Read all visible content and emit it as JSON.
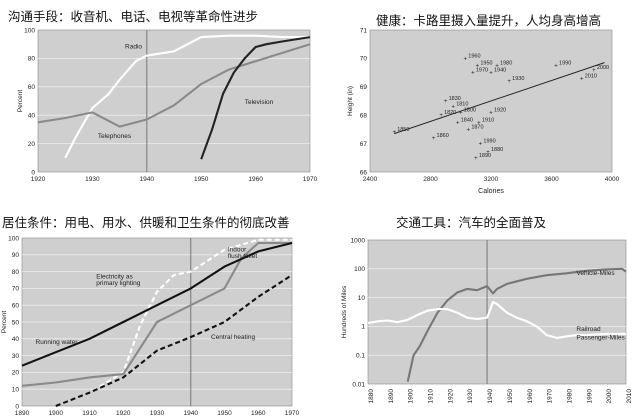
{
  "chart_data": [
    {
      "type": "line",
      "title": "沟通手段：收音机、电话、电视等革命性进步",
      "ylabel": "Percent",
      "xlim": [
        1920,
        1970
      ],
      "ylim": [
        0,
        100
      ],
      "xticks": [
        1920,
        1930,
        1940,
        1950,
        1960,
        1970
      ],
      "yticks": [
        0,
        20,
        40,
        60,
        80,
        100
      ],
      "grid": "horizontal",
      "series": [
        {
          "name": "Radio",
          "x": [
            1925,
            1927,
            1930,
            1933,
            1935,
            1938,
            1940,
            1945,
            1950,
            1955,
            1960,
            1965,
            1970
          ],
          "y": [
            10,
            25,
            45,
            55,
            65,
            78,
            82,
            85,
            95,
            96,
            96,
            95,
            95
          ],
          "color": "#ffffff"
        },
        {
          "name": "Telephones",
          "x": [
            1920,
            1925,
            1930,
            1935,
            1940,
            1945,
            1950,
            1955,
            1960,
            1965,
            1970
          ],
          "y": [
            35,
            38,
            42,
            32,
            37,
            47,
            62,
            72,
            78,
            84,
            90
          ],
          "color": "#8a8a8a"
        },
        {
          "name": "Television",
          "x": [
            1950,
            1952,
            1954,
            1956,
            1958,
            1960,
            1962,
            1965,
            1970
          ],
          "y": [
            9,
            30,
            55,
            70,
            80,
            88,
            90,
            92,
            95
          ],
          "color": "#222222"
        }
      ],
      "annotations": [
        {
          "text": "Radio",
          "x": 1936,
          "y": 87
        },
        {
          "text": "Television",
          "x": 1958,
          "y": 48
        },
        {
          "text": "Telephones",
          "x": 1931,
          "y": 24
        }
      ]
    },
    {
      "type": "scatter",
      "title": "健康：卡路里摄入量提升，人均身高增高",
      "xlabel": "Calories",
      "ylabel": "Height (in)",
      "xlim": [
        2400,
        4000
      ],
      "ylim": [
        66,
        71
      ],
      "xticks": [
        2400,
        2800,
        3200,
        3600,
        4000
      ],
      "yticks": [
        66,
        67,
        68,
        69,
        70,
        71
      ],
      "grid": "none",
      "points": [
        {
          "label": "1850",
          "x": 2560,
          "y": 67.4
        },
        {
          "label": "1830",
          "x": 2900,
          "y": 68.5
        },
        {
          "label": "1810",
          "x": 2950,
          "y": 68.3
        },
        {
          "label": "1800",
          "x": 3000,
          "y": 68.1
        },
        {
          "label": "1820",
          "x": 2870,
          "y": 68.0
        },
        {
          "label": "1840",
          "x": 2980,
          "y": 67.75
        },
        {
          "label": "1870",
          "x": 3050,
          "y": 67.5
        },
        {
          "label": "1910",
          "x": 3120,
          "y": 67.75
        },
        {
          "label": "1860",
          "x": 2820,
          "y": 67.2
        },
        {
          "label": "1960",
          "x": 3030,
          "y": 70.0
        },
        {
          "label": "1950",
          "x": 3110,
          "y": 69.75
        },
        {
          "label": "1970",
          "x": 3080,
          "y": 69.5
        },
        {
          "label": "1980",
          "x": 3240,
          "y": 69.75
        },
        {
          "label": "1940",
          "x": 3200,
          "y": 69.5
        },
        {
          "label": "1930",
          "x": 3320,
          "y": 69.2
        },
        {
          "label": "1920",
          "x": 3200,
          "y": 68.1
        },
        {
          "label": "1990",
          "x": 3630,
          "y": 69.75
        },
        {
          "label": "2000",
          "x": 3880,
          "y": 69.6
        },
        {
          "label": "2010",
          "x": 3800,
          "y": 69.3
        },
        {
          "label": "1990",
          "x": 3130,
          "y": 67.0
        },
        {
          "label": "1880",
          "x": 3180,
          "y": 66.7
        },
        {
          "label": "1890",
          "x": 3100,
          "y": 66.5
        }
      ],
      "trendline": {
        "x": [
          2560,
          3950
        ],
        "y": [
          67.35,
          69.85
        ]
      }
    },
    {
      "type": "line",
      "title": "居住条件：用电、用水、供暖和卫生条件的彻底改善",
      "ylabel": "Percent",
      "xlim": [
        1890,
        1970
      ],
      "ylim": [
        0,
        100
      ],
      "xticks": [
        1890,
        1900,
        1910,
        1920,
        1930,
        1940,
        1950,
        1960,
        1970
      ],
      "yticks": [
        0,
        10,
        20,
        30,
        40,
        50,
        60,
        70,
        80,
        90,
        100
      ],
      "grid": "horizontal",
      "series": [
        {
          "name": "Electricity as primary lighting",
          "x": [
            1900,
            1910,
            1920,
            1925,
            1930,
            1935,
            1940,
            1950,
            1960,
            1970
          ],
          "y": [
            0,
            8,
            20,
            48,
            68,
            78,
            80,
            93,
            99,
            99
          ],
          "color": "#ffffff",
          "dash": true
        },
        {
          "name": "Indoor flush toilet",
          "x": [
            1890,
            1900,
            1910,
            1920,
            1930,
            1940,
            1950,
            1955,
            1960,
            1970
          ],
          "y": [
            12,
            14,
            17,
            19,
            50,
            60,
            70,
            88,
            97,
            97
          ],
          "color": "#8a8a8a"
        },
        {
          "name": "Running water",
          "x": [
            1890,
            1900,
            1910,
            1920,
            1930,
            1940,
            1950,
            1960,
            1970
          ],
          "y": [
            24,
            32,
            40,
            50,
            60,
            70,
            83,
            92,
            97
          ],
          "color": "#111111"
        },
        {
          "name": "Central heating",
          "x": [
            1900,
            1910,
            1920,
            1930,
            1940,
            1950,
            1960,
            1970
          ],
          "y": [
            0,
            8,
            17,
            33,
            41,
            50,
            65,
            78
          ],
          "color": "#111111",
          "dash": true
        }
      ],
      "annotations": [
        {
          "text": "Electricity as",
          "x": 1912,
          "y": 76
        },
        {
          "text": "primary lighting",
          "x": 1912,
          "y": 72
        },
        {
          "text": "Indoor",
          "x": 1951,
          "y": 92
        },
        {
          "text": "flush toilet",
          "x": 1951,
          "y": 88
        },
        {
          "text": "Running water",
          "x": 1894,
          "y": 37
        },
        {
          "text": "Central heating",
          "x": 1946,
          "y": 40
        }
      ]
    },
    {
      "type": "line",
      "title": "交通工具：汽车的全面普及",
      "ylabel": "Hundreds of Miles",
      "xlim": [
        1880,
        2010
      ],
      "ylim": [
        0.01,
        1000
      ],
      "yscale": "log",
      "xticks": [
        1880,
        1890,
        1900,
        1910,
        1920,
        1930,
        1940,
        1950,
        1960,
        1970,
        1980,
        1990,
        2000,
        2010
      ],
      "yticks": [
        "0.01",
        "0.1",
        "1",
        "10",
        "100",
        "1000"
      ],
      "grid": "horizontal",
      "series": [
        {
          "name": "Vehicle-Miles",
          "x": [
            1900,
            1903,
            1906,
            1910,
            1915,
            1920,
            1925,
            1930,
            1935,
            1940,
            1943,
            1945,
            1950,
            1960,
            1970,
            1980,
            1990,
            2000,
            2008,
            2010
          ],
          "y": [
            0.012,
            0.1,
            0.2,
            0.7,
            3,
            8,
            15,
            20,
            18,
            25,
            14,
            20,
            30,
            45,
            60,
            70,
            85,
            95,
            100,
            80
          ],
          "color": "#777777"
        },
        {
          "name": "Railroad Passenger-Miles",
          "x": [
            1880,
            1885,
            1890,
            1895,
            1900,
            1905,
            1910,
            1915,
            1920,
            1925,
            1930,
            1935,
            1940,
            1943,
            1945,
            1950,
            1955,
            1960,
            1965,
            1970,
            1975,
            1980,
            1985,
            1990,
            2000,
            2010
          ],
          "y": [
            1.3,
            1.5,
            1.6,
            1.4,
            1.7,
            2.5,
            3.5,
            4,
            4,
            3,
            2,
            1.8,
            2,
            7,
            6,
            3,
            2,
            1.5,
            1,
            0.5,
            0.4,
            0.45,
            0.5,
            0.5,
            0.55,
            0.55
          ],
          "color": "#ffffff"
        }
      ],
      "annotations": [
        {
          "text": "Vehicle-Miles",
          "x": 1985,
          "y": 60
        },
        {
          "text": "Railroad",
          "x": 1985,
          "y": 0.7
        },
        {
          "text": "Passenger-Miles",
          "x": 1985,
          "y": 0.35
        }
      ]
    }
  ]
}
